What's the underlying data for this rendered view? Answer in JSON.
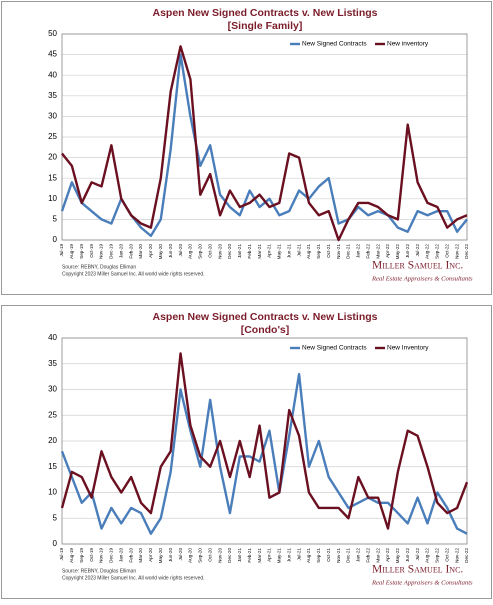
{
  "chart_data": [
    {
      "type": "line",
      "title": "Aspen New Signed Contracts v. New Listings",
      "subtitle": "[Single Family]",
      "categories": [
        "Jul-19",
        "Aug-19",
        "Sep-19",
        "Oct-19",
        "Nov-19",
        "Dec-19",
        "Jan-20",
        "Feb-20",
        "Mar-20",
        "Apr-20",
        "May-20",
        "Jun-20",
        "Jul-20",
        "Aug-20",
        "Sep-20",
        "Oct-20",
        "Nov-20",
        "Dec-20",
        "Jan-21",
        "Feb-21",
        "Mar-21",
        "Apr-21",
        "May-21",
        "Jun-21",
        "Jul-21",
        "Aug-21",
        "Sep-21",
        "Oct-21",
        "Nov-21",
        "Dec-21",
        "Jan-22",
        "Feb-22",
        "Mar-22",
        "Apr-22",
        "May-22",
        "Jun-22",
        "Jul-22",
        "Aug-22",
        "Sep-22",
        "Oct-22",
        "Nov-22",
        "Dec-22"
      ],
      "series": [
        {
          "name": "New Signed Contracts",
          "color": "#4a7ebb",
          "values": [
            7,
            14,
            9,
            7,
            5,
            4,
            10,
            6,
            3,
            1,
            5,
            22,
            45,
            30,
            18,
            23,
            11,
            8,
            6,
            12,
            8,
            10,
            6,
            7,
            12,
            10,
            13,
            15,
            4,
            5,
            8,
            6,
            7,
            6,
            3,
            2,
            7,
            6,
            7,
            7,
            2,
            5
          ]
        },
        {
          "name": "New inventory",
          "color": "#6b1020",
          "values": [
            21,
            18,
            9,
            14,
            13,
            23,
            10,
            6,
            4,
            3,
            15,
            36,
            47,
            39,
            11,
            16,
            6,
            12,
            8,
            9,
            11,
            8,
            9,
            21,
            20,
            9,
            6,
            7,
            0,
            5,
            9,
            9,
            8,
            6,
            5,
            28,
            14,
            9,
            8,
            3,
            5,
            6
          ]
        }
      ],
      "ylim": [
        0,
        50
      ],
      "yticks": [
        0,
        5,
        10,
        15,
        20,
        25,
        30,
        35,
        40,
        45,
        50
      ],
      "grid": true,
      "legend": "top-right",
      "source": "Source: REBNY, Douglas Elliman",
      "copyright": "Copyright 2023 Miller Samuel Inc. All world wide rights reserved.",
      "brand": "Miller Samuel Inc.",
      "brand_tagline": "Real Estate Appraisers & Consultants"
    },
    {
      "type": "line",
      "title": "Aspen New Signed Contracts v. New Listings",
      "subtitle": "[Condo's]",
      "categories": [
        "Jul-19",
        "Aug-19",
        "Sep-19",
        "Oct-19",
        "Nov-19",
        "Dec-19",
        "Jan-20",
        "Feb-20",
        "Mar-20",
        "Apr-20",
        "May-20",
        "Jun-20",
        "Jul-20",
        "Aug-20",
        "Sep-20",
        "Oct-20",
        "Nov-20",
        "Dec-20",
        "Jan-21",
        "Feb-21",
        "Mar-21",
        "Apr-21",
        "May-21",
        "Jun-21",
        "Jul-21",
        "Aug-21",
        "Sep-21",
        "Oct-21",
        "Nov-21",
        "Dec-21",
        "Jan-22",
        "Feb-22",
        "Mar-22",
        "Apr-22",
        "May-22",
        "Jun-22",
        "Jul-22",
        "Aug-22",
        "Sep-22",
        "Oct-22",
        "Nov-22",
        "Dec-22"
      ],
      "series": [
        {
          "name": "New Signed Contracts",
          "color": "#4a7ebb",
          "values": [
            18,
            13,
            8,
            10,
            3,
            7,
            4,
            7,
            6,
            2,
            5,
            14,
            30,
            22,
            15,
            28,
            15,
            6,
            17,
            17,
            16,
            22,
            10,
            21,
            33,
            15,
            20,
            13,
            10,
            7,
            8,
            9,
            8,
            8,
            6,
            4,
            9,
            4,
            10,
            7,
            3,
            2
          ]
        },
        {
          "name": "New Inventory",
          "color": "#6b1020",
          "values": [
            7,
            14,
            13,
            9,
            18,
            13,
            10,
            13,
            8,
            6,
            15,
            18,
            37,
            23,
            17,
            15,
            20,
            13,
            20,
            13,
            23,
            9,
            10,
            26,
            21,
            10,
            7,
            7,
            7,
            5,
            13,
            9,
            9,
            3,
            14,
            22,
            21,
            15,
            8,
            6,
            7,
            12
          ]
        }
      ],
      "ylim": [
        0,
        40
      ],
      "yticks": [
        0,
        5,
        10,
        15,
        20,
        25,
        30,
        35,
        40
      ],
      "grid": true,
      "legend": "top-right",
      "source": "Source: REBNY, Douglas Elliman",
      "copyright": "Copyright 2023 Miller Samuel Inc. All world wide rights reserved.",
      "brand": "Miller Samuel Inc.",
      "brand_tagline": "Real Estate Appraisers & Consultants"
    }
  ]
}
